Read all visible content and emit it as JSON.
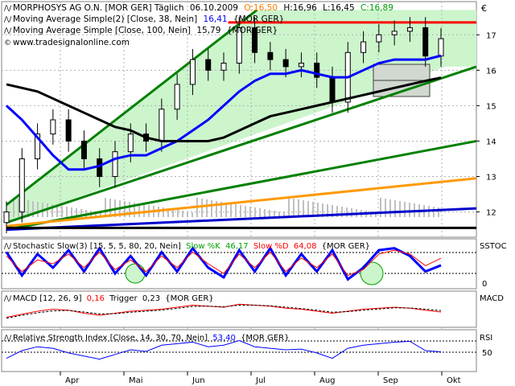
{
  "currency_symbol": "€",
  "header": {
    "title": "MORPHOSYS AG O.N. [MOR GER]  Täglich",
    "date": "06.10.2009",
    "ohlc": [
      {
        "label": "O:16,50",
        "color": "#ff7f00"
      },
      {
        "label": "H:16,96",
        "color": "#000000"
      },
      {
        "label": "L:16,45",
        "color": "#000000"
      },
      {
        "label": "C:16,89",
        "color": "#00a000"
      }
    ],
    "ma1": {
      "label": "Moving Average Simple(2) [Close, 38, Nein]",
      "value": "16,41",
      "suffix": "{MOR GER}",
      "color": "#0000ff"
    },
    "ma2": {
      "label": "Moving Average Simple [Close, 100, Nein]",
      "value": "15,79",
      "suffix": "{MOR GER}",
      "color": "#000000"
    },
    "source": "www.tradesignalonline.com"
  },
  "months": [
    "Apr",
    "Mai",
    "Jun",
    "Jul",
    "Aug",
    "Sep",
    "Okt"
  ],
  "chart_data": [
    {
      "type": "candlestick",
      "title": "MORPHOSYS AG O.N. [MOR GER]",
      "ylim": [
        11.4,
        17.8
      ],
      "yticks": [
        12,
        13,
        14,
        15,
        16,
        17
      ],
      "x": [
        "2009-03-23",
        "2009-03-30",
        "2009-04-06",
        "2009-04-13",
        "2009-04-20",
        "2009-04-27",
        "2009-05-04",
        "2009-05-11",
        "2009-05-18",
        "2009-05-25",
        "2009-06-01",
        "2009-06-08",
        "2009-06-15",
        "2009-06-22",
        "2009-06-29",
        "2009-07-06",
        "2009-07-13",
        "2009-07-20",
        "2009-07-27",
        "2009-08-03",
        "2009-08-10",
        "2009-08-17",
        "2009-08-24",
        "2009-08-31",
        "2009-09-07",
        "2009-09-14",
        "2009-09-21",
        "2009-09-28",
        "2009-10-05"
      ],
      "series": [
        {
          "name": "Close",
          "color": "#000000",
          "values": [
            12.0,
            13.5,
            14.2,
            14.6,
            14.0,
            13.5,
            13.0,
            13.7,
            14.2,
            14.0,
            14.9,
            15.6,
            16.3,
            16.0,
            16.2,
            17.2,
            16.5,
            16.3,
            16.1,
            16.2,
            15.8,
            15.1,
            16.5,
            16.8,
            17.0,
            17.1,
            17.2,
            16.4,
            16.89
          ]
        },
        {
          "name": "Moving Average Simple(2) [Close, 38, Nein]",
          "color": "#0000ff",
          "values": [
            15.0,
            14.6,
            14.1,
            13.6,
            13.2,
            13.2,
            13.3,
            13.5,
            13.6,
            13.6,
            13.8,
            14.0,
            14.3,
            14.6,
            15.0,
            15.4,
            15.7,
            15.9,
            15.9,
            16.0,
            15.9,
            15.8,
            15.8,
            16.0,
            16.2,
            16.3,
            16.3,
            16.3,
            16.41
          ]
        },
        {
          "name": "Moving Average Simple [Close, 100, Nein]",
          "color": "#000000",
          "values": [
            15.6,
            15.5,
            15.4,
            15.2,
            15.0,
            14.8,
            14.6,
            14.4,
            14.3,
            14.1,
            14.0,
            14.0,
            14.0,
            14.0,
            14.1,
            14.3,
            14.5,
            14.7,
            14.8,
            14.9,
            15.0,
            15.1,
            15.2,
            15.3,
            15.4,
            15.5,
            15.6,
            15.7,
            15.79
          ]
        }
      ],
      "trendlines": [
        {
          "color": "#008000",
          "from": [
            "2009-03-23",
            12.2
          ],
          "to": [
            "2009-07-14",
            17.7
          ]
        },
        {
          "color": "#008000",
          "from": [
            "2009-03-23",
            11.7
          ],
          "to": [
            "2009-10-07",
            16.1
          ]
        },
        {
          "color": "#008000",
          "from": [
            "2009-03-23",
            11.5
          ],
          "to": [
            "2009-10-07",
            14.0
          ]
        },
        {
          "color": "#ff9900",
          "from": [
            "2009-03-23",
            11.6
          ],
          "to": [
            "2009-10-07",
            12.95
          ]
        },
        {
          "color": "#0000cc",
          "from": [
            "2009-03-23",
            11.5
          ],
          "to": [
            "2009-10-07",
            12.1
          ]
        },
        {
          "color": "#ff0000",
          "from": [
            "2009-07-01",
            17.35
          ],
          "to": [
            "2009-10-07",
            17.35
          ]
        },
        {
          "color": "#000000",
          "from": [
            "2009-03-23",
            11.55
          ],
          "to": [
            "2009-10-07",
            11.55
          ]
        }
      ]
    },
    {
      "type": "line",
      "title": "Stochastic Slow(3) [15, 5, 5, 80, 20, Nein]",
      "ylim": [
        -10,
        110
      ],
      "yticks": [
        0
      ],
      "levels": [
        20,
        80
      ],
      "series": [
        {
          "name": "Slow %K",
          "value": "46,17",
          "color": "#00a000",
          "values": [
            80,
            20,
            75,
            40,
            85,
            30,
            90,
            25,
            70,
            20,
            80,
            30,
            90,
            40,
            15,
            85,
            30,
            90,
            20,
            75,
            30,
            85,
            10,
            40,
            85,
            90,
            70,
            30,
            46
          ]
        },
        {
          "name": "Slow %D",
          "value": "64,08",
          "color": "#ff0000",
          "values": [
            70,
            30,
            60,
            50,
            75,
            40,
            80,
            35,
            60,
            30,
            70,
            40,
            80,
            50,
            25,
            75,
            40,
            80,
            30,
            65,
            40,
            75,
            20,
            35,
            75,
            85,
            75,
            45,
            64
          ]
        }
      ]
    },
    {
      "type": "line",
      "title": "MACD [12, 26, 9]",
      "series": [
        {
          "name": "MACD",
          "value": "0,16",
          "color": "#ff0000",
          "values": [
            -0.1,
            0.05,
            0.2,
            0.3,
            0.25,
            0.1,
            0.0,
            0.1,
            0.2,
            0.25,
            0.3,
            0.4,
            0.5,
            0.45,
            0.4,
            0.55,
            0.5,
            0.45,
            0.35,
            0.3,
            0.2,
            0.1,
            0.2,
            0.3,
            0.35,
            0.4,
            0.35,
            0.25,
            0.16
          ]
        },
        {
          "name": "Trigger",
          "value": "0,23",
          "color": "#000000",
          "values": [
            -0.15,
            0.0,
            0.12,
            0.22,
            0.24,
            0.16,
            0.06,
            0.08,
            0.15,
            0.2,
            0.26,
            0.34,
            0.44,
            0.45,
            0.42,
            0.5,
            0.5,
            0.47,
            0.4,
            0.33,
            0.25,
            0.15,
            0.18,
            0.25,
            0.31,
            0.37,
            0.36,
            0.3,
            0.23
          ]
        }
      ]
    },
    {
      "type": "line",
      "title": "Relative Strength Index [Close, 14, 30, 70, Nein]",
      "ylim": [
        30,
        80
      ],
      "yticks": [
        50
      ],
      "levels": [
        70,
        50
      ],
      "series": [
        {
          "name": "RSI",
          "value": "53,40",
          "color": "#0000ff",
          "values": [
            45,
            55,
            60,
            58,
            52,
            48,
            44,
            50,
            56,
            54,
            62,
            64,
            66,
            60,
            62,
            68,
            60,
            58,
            56,
            57,
            52,
            45,
            58,
            62,
            64,
            66,
            67,
            55,
            53.4
          ]
        }
      ]
    }
  ],
  "panels": {
    "stoch": {
      "right_label": "SSTOC",
      "suffix": "{MOR GER}"
    },
    "macd": {
      "right_label": "MACD",
      "suffix": "{MOR GER}"
    },
    "rsi": {
      "right_label": "RSI",
      "suffix": "{MOR GER}"
    }
  }
}
